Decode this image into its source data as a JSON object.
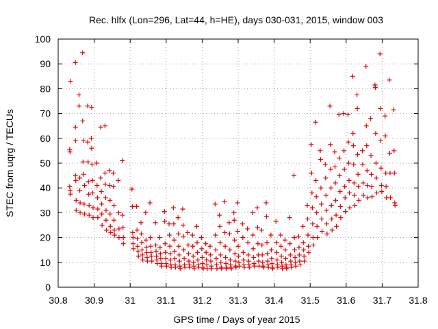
{
  "chart_data": {
    "type": "scatter",
    "title": "Rec. hlfx (Lon=296, Lat=44, h=HE), days 030-031, 2015, window 003",
    "xlabel": "GPS time / Days of year 2015",
    "ylabel": "STEC from uqrg / TECUs",
    "xlim": [
      30.8,
      31.8
    ],
    "ylim": [
      0,
      100
    ],
    "x_ticks": [
      "30.8",
      "30.9",
      "31",
      "31.1",
      "31.2",
      "31.3",
      "31.4",
      "31.5",
      "31.6",
      "31.7",
      "31.8"
    ],
    "y_ticks": [
      "0",
      "10",
      "20",
      "30",
      "40",
      "50",
      "60",
      "70",
      "80",
      "90",
      "100"
    ],
    "grid": true,
    "marker": "+",
    "color": "#e00000",
    "points": [
      [
        30.834,
        83
      ],
      [
        30.832,
        55.5
      ],
      [
        30.833,
        54.5
      ],
      [
        30.832,
        40.5
      ],
      [
        30.833,
        39
      ],
      [
        30.834,
        37.5
      ],
      [
        30.848,
        90.5
      ],
      [
        30.848,
        64.5
      ],
      [
        30.848,
        59
      ],
      [
        30.848,
        45
      ],
      [
        30.849,
        43
      ],
      [
        30.85,
        35
      ],
      [
        30.85,
        31
      ],
      [
        30.858,
        77.5
      ],
      [
        30.858,
        73
      ],
      [
        30.86,
        44
      ],
      [
        30.86,
        39
      ],
      [
        30.861,
        34
      ],
      [
        30.861,
        30
      ],
      [
        30.868,
        94.5
      ],
      [
        30.868,
        67
      ],
      [
        30.87,
        59
      ],
      [
        30.869,
        50.5
      ],
      [
        30.871,
        45.5
      ],
      [
        30.873,
        41
      ],
      [
        30.872,
        33.5
      ],
      [
        30.873,
        29.5
      ],
      [
        30.882,
        73
      ],
      [
        30.882,
        58.5
      ],
      [
        30.883,
        50.5
      ],
      [
        30.884,
        42.5
      ],
      [
        30.885,
        37.5
      ],
      [
        30.886,
        33
      ],
      [
        30.886,
        29
      ],
      [
        30.893,
        72.5
      ],
      [
        30.892,
        60
      ],
      [
        30.893,
        56
      ],
      [
        30.894,
        49.5
      ],
      [
        30.895,
        43
      ],
      [
        30.896,
        38
      ],
      [
        30.897,
        32
      ],
      [
        30.897,
        28
      ],
      [
        30.907,
        50
      ],
      [
        30.908,
        41
      ],
      [
        30.909,
        36
      ],
      [
        30.91,
        31.5
      ],
      [
        30.91,
        28
      ],
      [
        30.918,
        64.5
      ],
      [
        30.918,
        44
      ],
      [
        30.92,
        38.5
      ],
      [
        30.921,
        33.5
      ],
      [
        30.921,
        29.5
      ],
      [
        30.922,
        25
      ],
      [
        30.93,
        65
      ],
      [
        30.93,
        46
      ],
      [
        30.931,
        41.5
      ],
      [
        30.932,
        36
      ],
      [
        30.933,
        31
      ],
      [
        30.933,
        27
      ],
      [
        30.934,
        23
      ],
      [
        30.942,
        47
      ],
      [
        30.943,
        41
      ],
      [
        30.944,
        35
      ],
      [
        30.944,
        29.5
      ],
      [
        30.945,
        24.5
      ],
      [
        30.946,
        22
      ],
      [
        30.953,
        46
      ],
      [
        30.954,
        40.5
      ],
      [
        30.955,
        33
      ],
      [
        30.955,
        27
      ],
      [
        30.956,
        23
      ],
      [
        30.957,
        21
      ],
      [
        30.967,
        43
      ],
      [
        30.968,
        30
      ],
      [
        30.969,
        23.5
      ],
      [
        30.969,
        20
      ],
      [
        30.978,
        51
      ],
      [
        30.979,
        29
      ],
      [
        30.98,
        24
      ],
      [
        30.981,
        20
      ],
      [
        30.981,
        17.5
      ],
      [
        31.005,
        39.5
      ],
      [
        31.006,
        32.5
      ],
      [
        31.007,
        22
      ],
      [
        31.008,
        20
      ],
      [
        31.008,
        17.5
      ],
      [
        31.009,
        15.5
      ],
      [
        31.018,
        32.5
      ],
      [
        31.019,
        23
      ],
      [
        31.02,
        19.5
      ],
      [
        31.021,
        16.5
      ],
      [
        31.022,
        14.5
      ],
      [
        31.023,
        12.5
      ],
      [
        31.03,
        26
      ],
      [
        31.031,
        21.5
      ],
      [
        31.032,
        18
      ],
      [
        31.033,
        15
      ],
      [
        31.034,
        13
      ],
      [
        31.035,
        11
      ],
      [
        31.043,
        30
      ],
      [
        31.044,
        19
      ],
      [
        31.045,
        16
      ],
      [
        31.046,
        14
      ],
      [
        31.047,
        12
      ],
      [
        31.048,
        10.5
      ],
      [
        31.055,
        34
      ],
      [
        31.056,
        20
      ],
      [
        31.057,
        16.5
      ],
      [
        31.058,
        14
      ],
      [
        31.059,
        12.5
      ],
      [
        31.06,
        10.5
      ],
      [
        31.07,
        26
      ],
      [
        31.071,
        17
      ],
      [
        31.072,
        14.5
      ],
      [
        31.073,
        12.5
      ],
      [
        31.074,
        11
      ],
      [
        31.075,
        9.5
      ],
      [
        31.082,
        20
      ],
      [
        31.083,
        16
      ],
      [
        31.084,
        13.5
      ],
      [
        31.085,
        11.5
      ],
      [
        31.086,
        9.5
      ],
      [
        31.087,
        8.5
      ],
      [
        31.095,
        30.5
      ],
      [
        31.096,
        26.5
      ],
      [
        31.097,
        17.5
      ],
      [
        31.098,
        14
      ],
      [
        31.099,
        11.5
      ],
      [
        31.1,
        9.5
      ],
      [
        31.101,
        8.5
      ],
      [
        31.108,
        25.5
      ],
      [
        31.109,
        21
      ],
      [
        31.11,
        16.5
      ],
      [
        31.111,
        13.5
      ],
      [
        31.112,
        11
      ],
      [
        31.113,
        9
      ],
      [
        31.114,
        8
      ],
      [
        31.12,
        32
      ],
      [
        31.121,
        25.5
      ],
      [
        31.122,
        19
      ],
      [
        31.123,
        14.5
      ],
      [
        31.124,
        11.5
      ],
      [
        31.125,
        9
      ],
      [
        31.126,
        8
      ],
      [
        31.133,
        28
      ],
      [
        31.134,
        21.5
      ],
      [
        31.135,
        16.5
      ],
      [
        31.136,
        13
      ],
      [
        31.137,
        10.5
      ],
      [
        31.138,
        8.5
      ],
      [
        31.139,
        7.5
      ],
      [
        31.146,
        31.5
      ],
      [
        31.147,
        25
      ],
      [
        31.148,
        20.5
      ],
      [
        31.149,
        15
      ],
      [
        31.15,
        11.5
      ],
      [
        31.151,
        9
      ],
      [
        31.152,
        8
      ],
      [
        31.16,
        22
      ],
      [
        31.161,
        17
      ],
      [
        31.162,
        13.5
      ],
      [
        31.163,
        10.5
      ],
      [
        31.164,
        9
      ],
      [
        31.165,
        8
      ],
      [
        31.173,
        21
      ],
      [
        31.174,
        16.5
      ],
      [
        31.175,
        12.5
      ],
      [
        31.176,
        10
      ],
      [
        31.177,
        8.5
      ],
      [
        31.178,
        7.5
      ],
      [
        31.185,
        24.5
      ],
      [
        31.186,
        18
      ],
      [
        31.187,
        14
      ],
      [
        31.188,
        11
      ],
      [
        31.189,
        9
      ],
      [
        31.19,
        8
      ],
      [
        31.198,
        20
      ],
      [
        31.199,
        15.5
      ],
      [
        31.2,
        12
      ],
      [
        31.201,
        9.5
      ],
      [
        31.202,
        8
      ],
      [
        31.203,
        7.5
      ],
      [
        31.21,
        17.5
      ],
      [
        31.211,
        14
      ],
      [
        31.212,
        11
      ],
      [
        31.213,
        9
      ],
      [
        31.214,
        7.5
      ],
      [
        31.222,
        16.5
      ],
      [
        31.223,
        13
      ],
      [
        31.224,
        10.5
      ],
      [
        31.225,
        8.5
      ],
      [
        31.226,
        7.5
      ],
      [
        31.236,
        33.5
      ],
      [
        31.237,
        21
      ],
      [
        31.238,
        15
      ],
      [
        31.239,
        11.5
      ],
      [
        31.24,
        9
      ],
      [
        31.241,
        7.5
      ],
      [
        31.248,
        29
      ],
      [
        31.249,
        24.5
      ],
      [
        31.25,
        18
      ],
      [
        31.251,
        13
      ],
      [
        31.252,
        10
      ],
      [
        31.253,
        8
      ],
      [
        31.254,
        7.5
      ],
      [
        31.262,
        34.5
      ],
      [
        31.263,
        22
      ],
      [
        31.264,
        16.5
      ],
      [
        31.265,
        12
      ],
      [
        31.266,
        9.5
      ],
      [
        31.267,
        8
      ],
      [
        31.268,
        7.5
      ],
      [
        31.275,
        26
      ],
      [
        31.276,
        21.5
      ],
      [
        31.277,
        15
      ],
      [
        31.278,
        11
      ],
      [
        31.279,
        9
      ],
      [
        31.28,
        8
      ],
      [
        31.281,
        7.5
      ],
      [
        31.288,
        30
      ],
      [
        31.289,
        27
      ],
      [
        31.29,
        19
      ],
      [
        31.291,
        13.5
      ],
      [
        31.292,
        10.5
      ],
      [
        31.293,
        8.5
      ],
      [
        31.294,
        8
      ],
      [
        31.298,
        34
      ],
      [
        31.299,
        22.5
      ],
      [
        31.3,
        16.5
      ],
      [
        31.301,
        12.5
      ],
      [
        31.302,
        10
      ],
      [
        31.303,
        8.5
      ],
      [
        31.312,
        25.5
      ],
      [
        31.313,
        20
      ],
      [
        31.314,
        14
      ],
      [
        31.315,
        11
      ],
      [
        31.316,
        9
      ],
      [
        31.317,
        8
      ],
      [
        31.326,
        23.5
      ],
      [
        31.327,
        18
      ],
      [
        31.328,
        13
      ],
      [
        31.329,
        10.5
      ],
      [
        31.33,
        9
      ],
      [
        31.331,
        8
      ],
      [
        31.34,
        30
      ],
      [
        31.341,
        21
      ],
      [
        31.342,
        15.5
      ],
      [
        31.343,
        12
      ],
      [
        31.344,
        9.5
      ],
      [
        31.345,
        8.5
      ],
      [
        31.353,
        32
      ],
      [
        31.354,
        24
      ],
      [
        31.355,
        17.5
      ],
      [
        31.356,
        13
      ],
      [
        31.357,
        10.5
      ],
      [
        31.358,
        8.5
      ],
      [
        31.365,
        23
      ],
      [
        31.366,
        17
      ],
      [
        31.367,
        13
      ],
      [
        31.368,
        10
      ],
      [
        31.369,
        8.5
      ],
      [
        31.37,
        8
      ],
      [
        31.378,
        34
      ],
      [
        31.379,
        28.5
      ],
      [
        31.38,
        18
      ],
      [
        31.381,
        13.5
      ],
      [
        31.382,
        10.5
      ],
      [
        31.383,
        9
      ],
      [
        31.384,
        8
      ],
      [
        31.391,
        21
      ],
      [
        31.392,
        15
      ],
      [
        31.393,
        11.5
      ],
      [
        31.394,
        9.5
      ],
      [
        31.395,
        8
      ],
      [
        31.396,
        7.5
      ],
      [
        31.405,
        26.5
      ],
      [
        31.406,
        18
      ],
      [
        31.407,
        14
      ],
      [
        31.408,
        11
      ],
      [
        31.409,
        9
      ],
      [
        31.41,
        8
      ],
      [
        31.418,
        21
      ],
      [
        31.419,
        16.5
      ],
      [
        31.42,
        12.5
      ],
      [
        31.421,
        10
      ],
      [
        31.422,
        8.5
      ],
      [
        31.423,
        7.5
      ],
      [
        31.43,
        19
      ],
      [
        31.431,
        15
      ],
      [
        31.432,
        11.5
      ],
      [
        31.433,
        9
      ],
      [
        31.434,
        8
      ],
      [
        31.435,
        7.5
      ],
      [
        31.443,
        28
      ],
      [
        31.444,
        17.5
      ],
      [
        31.445,
        13
      ],
      [
        31.446,
        10.5
      ],
      [
        31.447,
        9
      ],
      [
        31.448,
        8
      ],
      [
        31.455,
        45
      ],
      [
        31.456,
        20
      ],
      [
        31.457,
        15
      ],
      [
        31.458,
        12
      ],
      [
        31.459,
        10
      ],
      [
        31.46,
        8.5
      ],
      [
        31.468,
        20.5
      ],
      [
        31.469,
        16
      ],
      [
        31.47,
        13
      ],
      [
        31.471,
        10.5
      ],
      [
        31.472,
        9
      ],
      [
        31.48,
        24.5
      ],
      [
        31.481,
        18
      ],
      [
        31.482,
        15
      ],
      [
        31.483,
        12.5
      ],
      [
        31.484,
        10.5
      ],
      [
        31.492,
        33
      ],
      [
        31.493,
        27.5
      ],
      [
        31.494,
        21
      ],
      [
        31.495,
        16.5
      ],
      [
        31.496,
        14
      ],
      [
        31.503,
        57.5
      ],
      [
        31.504,
        46
      ],
      [
        31.505,
        38
      ],
      [
        31.506,
        32
      ],
      [
        31.507,
        25.5
      ],
      [
        31.508,
        20
      ],
      [
        31.509,
        17
      ],
      [
        31.515,
        66.5
      ],
      [
        31.516,
        43
      ],
      [
        31.517,
        36.5
      ],
      [
        31.518,
        30
      ],
      [
        31.519,
        24.5
      ],
      [
        31.52,
        20
      ],
      [
        31.528,
        55
      ],
      [
        31.529,
        51.5
      ],
      [
        31.53,
        40
      ],
      [
        31.531,
        33.5
      ],
      [
        31.532,
        27.5
      ],
      [
        31.533,
        22.5
      ],
      [
        31.542,
        49.5
      ],
      [
        31.543,
        44
      ],
      [
        31.544,
        37
      ],
      [
        31.545,
        31
      ],
      [
        31.546,
        25.5
      ],
      [
        31.547,
        21.5
      ],
      [
        31.555,
        73
      ],
      [
        31.556,
        57.5
      ],
      [
        31.557,
        47.5
      ],
      [
        31.558,
        40
      ],
      [
        31.559,
        33
      ],
      [
        31.56,
        27.5
      ],
      [
        31.561,
        23
      ],
      [
        31.568,
        54.5
      ],
      [
        31.569,
        48.5
      ],
      [
        31.57,
        42
      ],
      [
        31.571,
        35
      ],
      [
        31.572,
        29
      ],
      [
        31.573,
        24.5
      ],
      [
        31.58,
        69.5
      ],
      [
        31.581,
        52
      ],
      [
        31.582,
        45
      ],
      [
        31.583,
        38.5
      ],
      [
        31.584,
        32.5
      ],
      [
        31.585,
        28
      ],
      [
        31.593,
        70
      ],
      [
        31.594,
        55
      ],
      [
        31.595,
        47.5
      ],
      [
        31.596,
        40.5
      ],
      [
        31.597,
        36
      ],
      [
        31.598,
        30.5
      ],
      [
        31.605,
        69.5
      ],
      [
        31.606,
        58.5
      ],
      [
        31.607,
        50
      ],
      [
        31.608,
        43
      ],
      [
        31.609,
        38
      ],
      [
        31.61,
        32
      ],
      [
        31.618,
        85
      ],
      [
        31.619,
        62
      ],
      [
        31.62,
        57
      ],
      [
        31.621,
        49.5
      ],
      [
        31.622,
        42
      ],
      [
        31.623,
        37
      ],
      [
        31.624,
        33
      ],
      [
        31.63,
        77.5
      ],
      [
        31.631,
        72
      ],
      [
        31.632,
        53.5
      ],
      [
        31.633,
        45.5
      ],
      [
        31.634,
        40.5
      ],
      [
        31.635,
        35
      ],
      [
        31.645,
        55
      ],
      [
        31.646,
        49.5
      ],
      [
        31.647,
        42
      ],
      [
        31.648,
        37
      ],
      [
        31.655,
        89
      ],
      [
        31.656,
        65
      ],
      [
        31.657,
        57
      ],
      [
        31.658,
        47
      ],
      [
        31.659,
        41
      ],
      [
        31.66,
        36
      ],
      [
        31.668,
        68
      ],
      [
        31.669,
        53
      ],
      [
        31.67,
        45.5
      ],
      [
        31.671,
        40.5
      ],
      [
        31.672,
        36.5
      ],
      [
        31.68,
        81.5
      ],
      [
        31.681,
        80.5
      ],
      [
        31.682,
        62
      ],
      [
        31.683,
        50
      ],
      [
        31.684,
        44
      ],
      [
        31.685,
        38
      ],
      [
        31.694,
        94
      ],
      [
        31.695,
        72
      ],
      [
        31.696,
        59
      ],
      [
        31.697,
        48
      ],
      [
        31.698,
        41
      ],
      [
        31.699,
        38.5
      ],
      [
        31.708,
        69
      ],
      [
        31.709,
        61
      ],
      [
        31.71,
        46
      ],
      [
        31.711,
        40.5
      ],
      [
        31.712,
        36
      ],
      [
        31.72,
        83.5
      ],
      [
        31.721,
        54
      ],
      [
        31.722,
        46
      ],
      [
        31.723,
        36
      ],
      [
        31.732,
        71.5
      ],
      [
        31.733,
        55
      ],
      [
        31.734,
        46
      ],
      [
        31.735,
        34
      ],
      [
        31.736,
        33
      ]
    ]
  }
}
